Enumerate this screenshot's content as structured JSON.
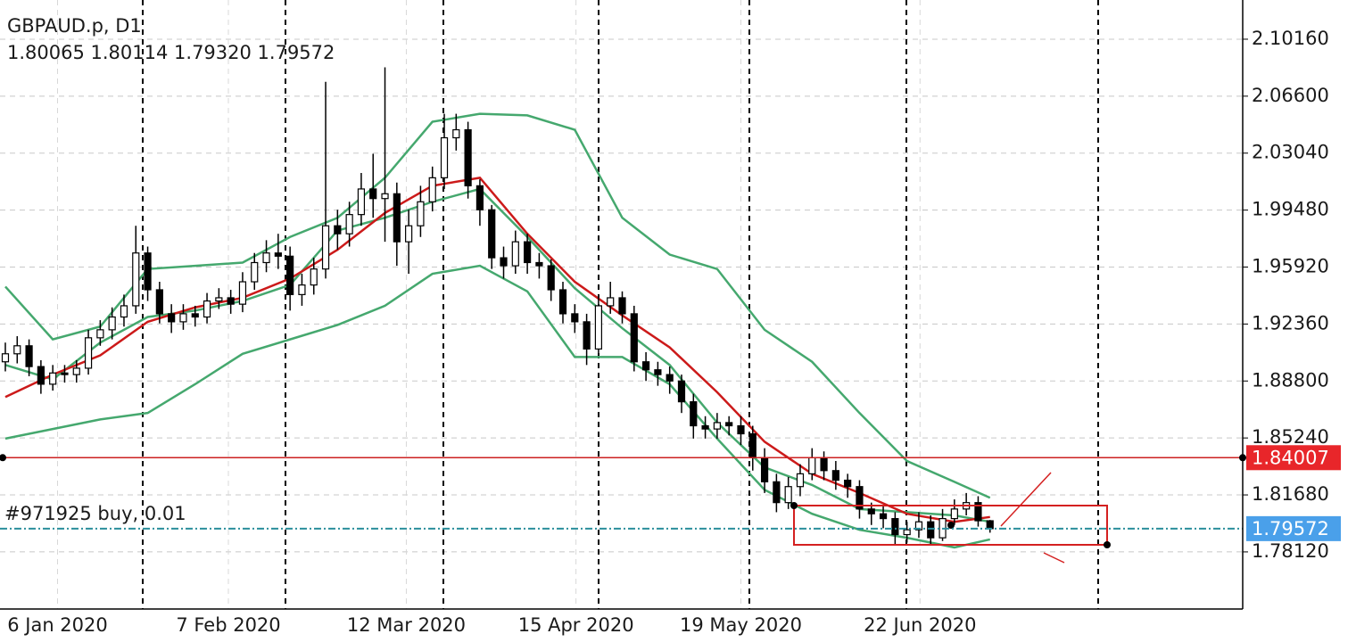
{
  "chart_data": {
    "type": "candlestick",
    "title": "GBPAUD.p, D1",
    "subtitle": "1.80065 1.80114 1.79320 1.79572",
    "annotation": "#971925 buy, 0.01",
    "open": [
      1.9,
      1.905,
      1.91,
      1.897,
      1.886,
      1.893,
      1.892,
      1.896,
      1.915,
      1.92,
      1.928,
      1.935,
      1.968,
      1.945,
      1.93,
      1.925,
      1.93,
      1.928,
      1.938,
      1.94,
      1.936,
      1.95,
      1.962,
      1.968,
      1.966,
      1.942,
      1.948,
      1.958,
      1.985,
      1.98,
      1.992,
      2.008,
      2.002,
      2.005,
      1.975,
      1.985,
      2.0,
      2.015,
      2.04,
      2.045,
      2.01,
      1.995,
      1.965,
      1.96,
      1.975,
      1.962,
      1.96,
      1.945,
      1.93,
      1.925,
      1.908,
      1.935,
      1.94,
      1.93,
      1.9,
      1.895,
      1.892,
      1.888,
      1.875,
      1.86,
      1.858,
      1.862,
      1.86,
      1.855,
      1.84,
      1.825,
      1.812,
      1.822,
      1.83,
      1.84,
      1.832,
      1.826,
      1.822,
      1.808,
      1.805,
      1.802,
      1.792,
      1.795,
      1.8,
      1.79,
      1.802,
      1.808,
      1.812,
      1.80065
    ],
    "high": [
      1.912,
      1.916,
      1.914,
      1.901,
      1.898,
      1.898,
      1.901,
      1.92,
      1.926,
      1.934,
      1.942,
      1.985,
      1.972,
      1.95,
      1.936,
      1.936,
      1.935,
      1.943,
      1.946,
      1.945,
      1.956,
      1.968,
      1.976,
      1.98,
      1.972,
      1.955,
      1.965,
      2.075,
      1.995,
      2.0,
      2.018,
      2.03,
      2.084,
      2.012,
      1.995,
      2.01,
      2.022,
      2.055,
      2.055,
      2.05,
      2.014,
      1.998,
      1.972,
      1.982,
      1.98,
      1.968,
      1.964,
      1.95,
      1.936,
      1.93,
      1.942,
      1.95,
      1.944,
      1.935,
      1.906,
      1.9,
      1.897,
      1.892,
      1.88,
      1.866,
      1.868,
      1.866,
      1.866,
      1.86,
      1.846,
      1.83,
      1.828,
      1.836,
      1.846,
      1.844,
      1.838,
      1.83,
      1.826,
      1.812,
      1.81,
      1.806,
      1.8,
      1.806,
      1.804,
      1.808,
      1.814,
      1.818,
      1.816,
      1.80114
    ],
    "low": [
      1.894,
      1.899,
      1.891,
      1.88,
      1.882,
      1.887,
      1.887,
      1.892,
      1.91,
      1.914,
      1.922,
      1.93,
      1.938,
      1.924,
      1.918,
      1.92,
      1.922,
      1.924,
      1.933,
      1.93,
      1.931,
      1.945,
      1.956,
      1.958,
      1.932,
      1.935,
      1.942,
      1.952,
      1.97,
      1.972,
      1.985,
      1.99,
      1.975,
      1.96,
      1.955,
      1.978,
      1.994,
      2.008,
      2.032,
      2.002,
      1.985,
      1.958,
      1.952,
      1.955,
      1.955,
      1.952,
      1.938,
      1.924,
      1.918,
      1.898,
      1.904,
      1.93,
      1.924,
      1.894,
      1.888,
      1.885,
      1.88,
      1.868,
      1.852,
      1.852,
      1.852,
      1.854,
      1.848,
      1.832,
      1.818,
      1.806,
      1.808,
      1.816,
      1.826,
      1.826,
      1.82,
      1.815,
      1.802,
      1.798,
      1.796,
      1.786,
      1.787,
      1.79,
      1.786,
      1.788,
      1.798,
      1.804,
      1.797,
      1.7932
    ],
    "close": [
      1.905,
      1.91,
      1.897,
      1.886,
      1.893,
      1.892,
      1.896,
      1.915,
      1.92,
      1.928,
      1.935,
      1.968,
      1.945,
      1.93,
      1.925,
      1.93,
      1.928,
      1.938,
      1.94,
      1.936,
      1.95,
      1.962,
      1.968,
      1.966,
      1.942,
      1.948,
      1.958,
      1.985,
      1.98,
      1.992,
      2.008,
      2.002,
      2.005,
      1.975,
      1.985,
      2.0,
      2.015,
      2.04,
      2.045,
      2.01,
      1.995,
      1.965,
      1.96,
      1.975,
      1.962,
      1.96,
      1.945,
      1.93,
      1.925,
      1.908,
      1.935,
      1.94,
      1.93,
      1.9,
      1.895,
      1.892,
      1.888,
      1.875,
      1.86,
      1.858,
      1.862,
      1.86,
      1.855,
      1.84,
      1.825,
      1.812,
      1.822,
      1.83,
      1.84,
      1.832,
      1.826,
      1.822,
      1.808,
      1.805,
      1.802,
      1.792,
      1.795,
      1.8,
      1.79,
      1.802,
      1.808,
      1.812,
      1.80065,
      1.79572
    ],
    "series": [
      {
        "color": "#45a86e",
        "x": [
          0,
          4,
          8,
          12,
          16,
          20,
          24,
          28,
          32,
          36,
          40,
          44,
          48,
          52,
          56,
          60,
          64,
          68,
          72,
          76,
          80,
          83
        ],
        "values": [
          1.947,
          1.914,
          1.922,
          1.958,
          1.96,
          1.962,
          1.978,
          1.99,
          2.015,
          2.05,
          2.055,
          2.054,
          2.045,
          1.99,
          1.967,
          1.958,
          1.92,
          1.9,
          1.868,
          1.838,
          1.825,
          1.815
        ]
      },
      {
        "color": "#45a86e",
        "x": [
          0,
          4,
          8,
          12,
          16,
          20,
          24,
          28,
          32,
          36,
          40,
          44,
          48,
          52,
          56,
          60,
          64,
          68,
          72,
          76,
          80,
          83
        ],
        "values": [
          1.898,
          1.889,
          1.912,
          1.928,
          1.932,
          1.938,
          1.948,
          1.982,
          1.99,
          2.0,
          2.008,
          1.978,
          1.946,
          1.921,
          1.898,
          1.862,
          1.834,
          1.823,
          1.808,
          1.806,
          1.804,
          1.8
        ]
      },
      {
        "color": "#45a86e",
        "x": [
          0,
          4,
          8,
          12,
          16,
          20,
          24,
          28,
          32,
          36,
          40,
          44,
          48,
          52,
          56,
          60,
          64,
          68,
          72,
          76,
          80,
          83
        ],
        "values": [
          1.852,
          1.858,
          1.864,
          1.868,
          1.886,
          1.905,
          1.914,
          1.923,
          1.935,
          1.955,
          1.96,
          1.944,
          1.903,
          1.903,
          1.886,
          1.852,
          1.82,
          1.805,
          1.795,
          1.79,
          1.784,
          1.789
        ]
      },
      {
        "color": "#cc1a1a",
        "x": [
          0,
          4,
          8,
          12,
          16,
          20,
          24,
          28,
          32,
          36,
          40,
          44,
          48,
          52,
          56,
          60,
          64,
          68,
          72,
          76,
          80,
          83
        ],
        "values": [
          1.878,
          1.892,
          1.904,
          1.925,
          1.934,
          1.94,
          1.952,
          1.97,
          1.993,
          2.01,
          2.015,
          1.98,
          1.95,
          1.929,
          1.909,
          1.881,
          1.85,
          1.83,
          1.818,
          1.805,
          1.8,
          1.803
        ]
      }
    ],
    "price_lines": [
      {
        "value": 1.84007,
        "color": "#cc2222",
        "box_color": "#e8262a"
      },
      {
        "value": 1.79572,
        "color": "#2a8f9c",
        "box_color": "#4aa0ea"
      }
    ],
    "xlim": [
      -0.45,
      104.3
    ],
    "ylim": [
      1.7455,
      2.1261
    ],
    "xticks": [
      {
        "value": 4.4,
        "label": "6 Jan 2020"
      },
      {
        "value": 18.8,
        "label": "7 Feb 2020"
      },
      {
        "value": 33.8,
        "label": "12 Mar 2020"
      },
      {
        "value": 48.1,
        "label": "15 Apr 2020"
      },
      {
        "value": 62.0,
        "label": "19 May 2020"
      },
      {
        "value": 77.1,
        "label": "22 Jun 2020"
      }
    ],
    "yticks": [
      {
        "value": 2.1016,
        "label": "2.10160"
      },
      {
        "value": 2.066,
        "label": "2.06600"
      },
      {
        "value": 2.0304,
        "label": "2.03040"
      },
      {
        "value": 1.9948,
        "label": "1.99480"
      },
      {
        "value": 1.9592,
        "label": "1.95920"
      },
      {
        "value": 1.9236,
        "label": "1.92360"
      },
      {
        "value": 1.888,
        "label": "1.88800"
      },
      {
        "value": 1.8524,
        "label": "1.85240"
      },
      {
        "value": 1.8168,
        "label": "1.81680"
      },
      {
        "value": 1.7812,
        "label": "1.78120"
      }
    ],
    "grid": true,
    "bull_color": "#ffffff",
    "bear_color": "#000000"
  }
}
